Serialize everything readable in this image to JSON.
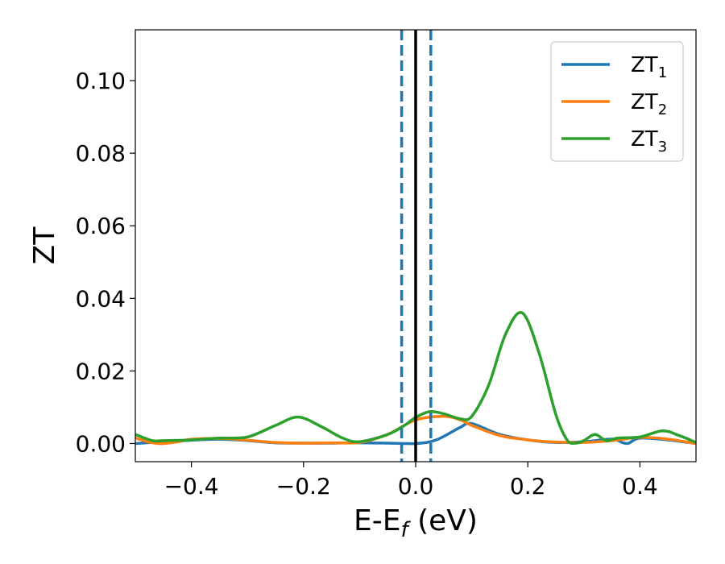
{
  "chart_data": {
    "type": "line",
    "xlabel": {
      "main": "E-E",
      "sub": "f",
      "suffix": " (eV)"
    },
    "ylabel": "ZT",
    "xlim": [
      -0.5,
      0.5
    ],
    "ylim": [
      -0.005,
      0.114
    ],
    "xticks": [
      -0.4,
      -0.2,
      0.0,
      0.2,
      0.4
    ],
    "xtick_labels": [
      "−0.4",
      "−0.2",
      "0.0",
      "0.2",
      "0.4"
    ],
    "yticks": [
      0.0,
      0.02,
      0.04,
      0.06,
      0.08,
      0.1
    ],
    "ytick_labels": [
      "0.00",
      "0.02",
      "0.04",
      "0.06",
      "0.08",
      "0.10"
    ],
    "grid": false,
    "legend_position": "top-right",
    "vlines": [
      {
        "x": 0.0,
        "style": "solid",
        "color": "#000000"
      },
      {
        "x": -0.025,
        "style": "dashed",
        "color": "#1f77b4"
      },
      {
        "x": 0.027,
        "style": "dashed",
        "color": "#1f77b4"
      }
    ],
    "series": [
      {
        "name": "ZT1",
        "label_main": "ZT",
        "label_sub": "1",
        "color": "#1f77b4",
        "x": [
          -0.5,
          -0.45,
          -0.4,
          -0.35,
          -0.3,
          -0.25,
          -0.2,
          -0.15,
          -0.1,
          -0.05,
          -0.02,
          0.0,
          0.02,
          0.04,
          0.06,
          0.08,
          0.1,
          0.15,
          0.2,
          0.25,
          0.3,
          0.35,
          0.37,
          0.38,
          0.4,
          0.45,
          0.5
        ],
        "y": [
          0.0,
          0.0005,
          0.0009,
          0.0012,
          0.0008,
          0.0002,
          0.0001,
          0.0001,
          0.0002,
          0.0001,
          0.0,
          0.0,
          0.0003,
          0.0012,
          0.0028,
          0.0045,
          0.0055,
          0.0025,
          0.001,
          0.0003,
          0.0005,
          0.0012,
          0.0002,
          0.0001,
          0.0015,
          0.001,
          0.0
        ]
      },
      {
        "name": "ZT2",
        "label_main": "ZT",
        "label_sub": "2",
        "color": "#ff7f0e",
        "x": [
          -0.5,
          -0.47,
          -0.45,
          -0.42,
          -0.4,
          -0.35,
          -0.3,
          -0.25,
          -0.2,
          -0.15,
          -0.1,
          -0.05,
          0.0,
          0.05,
          0.08,
          0.1,
          0.15,
          0.2,
          0.25,
          0.3,
          0.35,
          0.4,
          0.45,
          0.5
        ],
        "y": [
          0.0015,
          0.0002,
          0.0,
          0.0006,
          0.0012,
          0.0014,
          0.0009,
          0.0003,
          0.0001,
          0.0002,
          0.0003,
          0.0025,
          0.0065,
          0.0075,
          0.0065,
          0.005,
          0.0022,
          0.001,
          0.0004,
          0.0003,
          0.0008,
          0.0017,
          0.0012,
          0.0
        ]
      },
      {
        "name": "ZT3",
        "label_main": "ZT",
        "label_sub": "3",
        "color": "#2ca02c",
        "x": [
          -0.5,
          -0.47,
          -0.45,
          -0.4,
          -0.35,
          -0.3,
          -0.25,
          -0.21,
          -0.17,
          -0.13,
          -0.1,
          -0.05,
          -0.02,
          0.0,
          0.025,
          0.05,
          0.08,
          0.1,
          0.13,
          0.16,
          0.19,
          0.22,
          0.25,
          0.27,
          0.285,
          0.3,
          0.32,
          0.34,
          0.36,
          0.4,
          0.44,
          0.47,
          0.5
        ],
        "y": [
          0.0025,
          0.0008,
          0.0008,
          0.001,
          0.0015,
          0.0018,
          0.005,
          0.0073,
          0.0048,
          0.0015,
          0.0005,
          0.0025,
          0.005,
          0.0072,
          0.0088,
          0.0082,
          0.0068,
          0.0075,
          0.016,
          0.03,
          0.036,
          0.025,
          0.008,
          0.001,
          0.0001,
          0.0008,
          0.0025,
          0.0008,
          0.0015,
          0.0018,
          0.0035,
          0.0022,
          0.0003
        ]
      }
    ]
  }
}
